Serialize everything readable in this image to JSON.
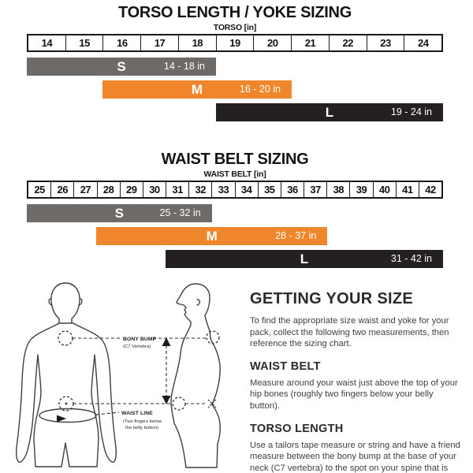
{
  "colors": {
    "orange": "#F0862C",
    "gray": "#6E6A67",
    "dark": "#242021"
  },
  "chart_data": [
    {
      "type": "bar",
      "title": "TORSO LENGTH / YOKE SIZING",
      "axis_label": "TORSO [in]",
      "axis_ticks": [
        14,
        15,
        16,
        17,
        18,
        19,
        20,
        21,
        22,
        23,
        24
      ],
      "xlim": [
        14,
        25
      ],
      "unit": "in",
      "series": [
        {
          "name": "S",
          "range_in": [
            14,
            18
          ],
          "label": "14 - 18 in",
          "color": "#6E6A67"
        },
        {
          "name": "M",
          "range_in": [
            16,
            20
          ],
          "label": "16 - 20 in",
          "color": "#F0862C"
        },
        {
          "name": "L",
          "range_in": [
            19,
            24
          ],
          "label": "19 - 24 in",
          "color": "#242021"
        }
      ]
    },
    {
      "type": "bar",
      "title": "WAIST BELT SIZING",
      "axis_label": "WAIST BELT [in]",
      "axis_ticks": [
        25,
        26,
        27,
        28,
        29,
        30,
        31,
        32,
        33,
        34,
        35,
        36,
        37,
        38,
        39,
        40,
        41,
        42
      ],
      "xlim": [
        25,
        43
      ],
      "unit": "in",
      "series": [
        {
          "name": "S",
          "range_in": [
            25,
            32
          ],
          "label": "25 - 32 in",
          "color": "#6E6A67"
        },
        {
          "name": "M",
          "range_in": [
            28,
            37
          ],
          "label": "28 - 37 in",
          "color": "#F0862C"
        },
        {
          "name": "L",
          "range_in": [
            31,
            42
          ],
          "label": "31 - 42 in",
          "color": "#242021"
        }
      ]
    }
  ],
  "diagram": {
    "bony_bump_label": "BONY BUMP",
    "bony_bump_sub": "(C7 Vertebra)",
    "waist_line_label": "WAIST LINE",
    "waist_line_sub1": "(Two fingers below",
    "waist_line_sub2": "the belly button)"
  },
  "info": {
    "heading": "GETTING YOUR SIZE",
    "intro": "To find the appropriate size waist and yoke for your pack, collect the following two measurements, then reference the sizing chart.",
    "sections": [
      {
        "heading": "WAIST BELT",
        "body": "Measure around your waist just above the top of your hip bones (roughly two fingers below your belly button)."
      },
      {
        "heading": "TORSO LENGTH",
        "body": "Use a tailors tape measure or string and have a friend measure between the bony bump at the base of your neck (C7 vertebra) to the spot on your spine that is just behind your belly button."
      }
    ]
  }
}
